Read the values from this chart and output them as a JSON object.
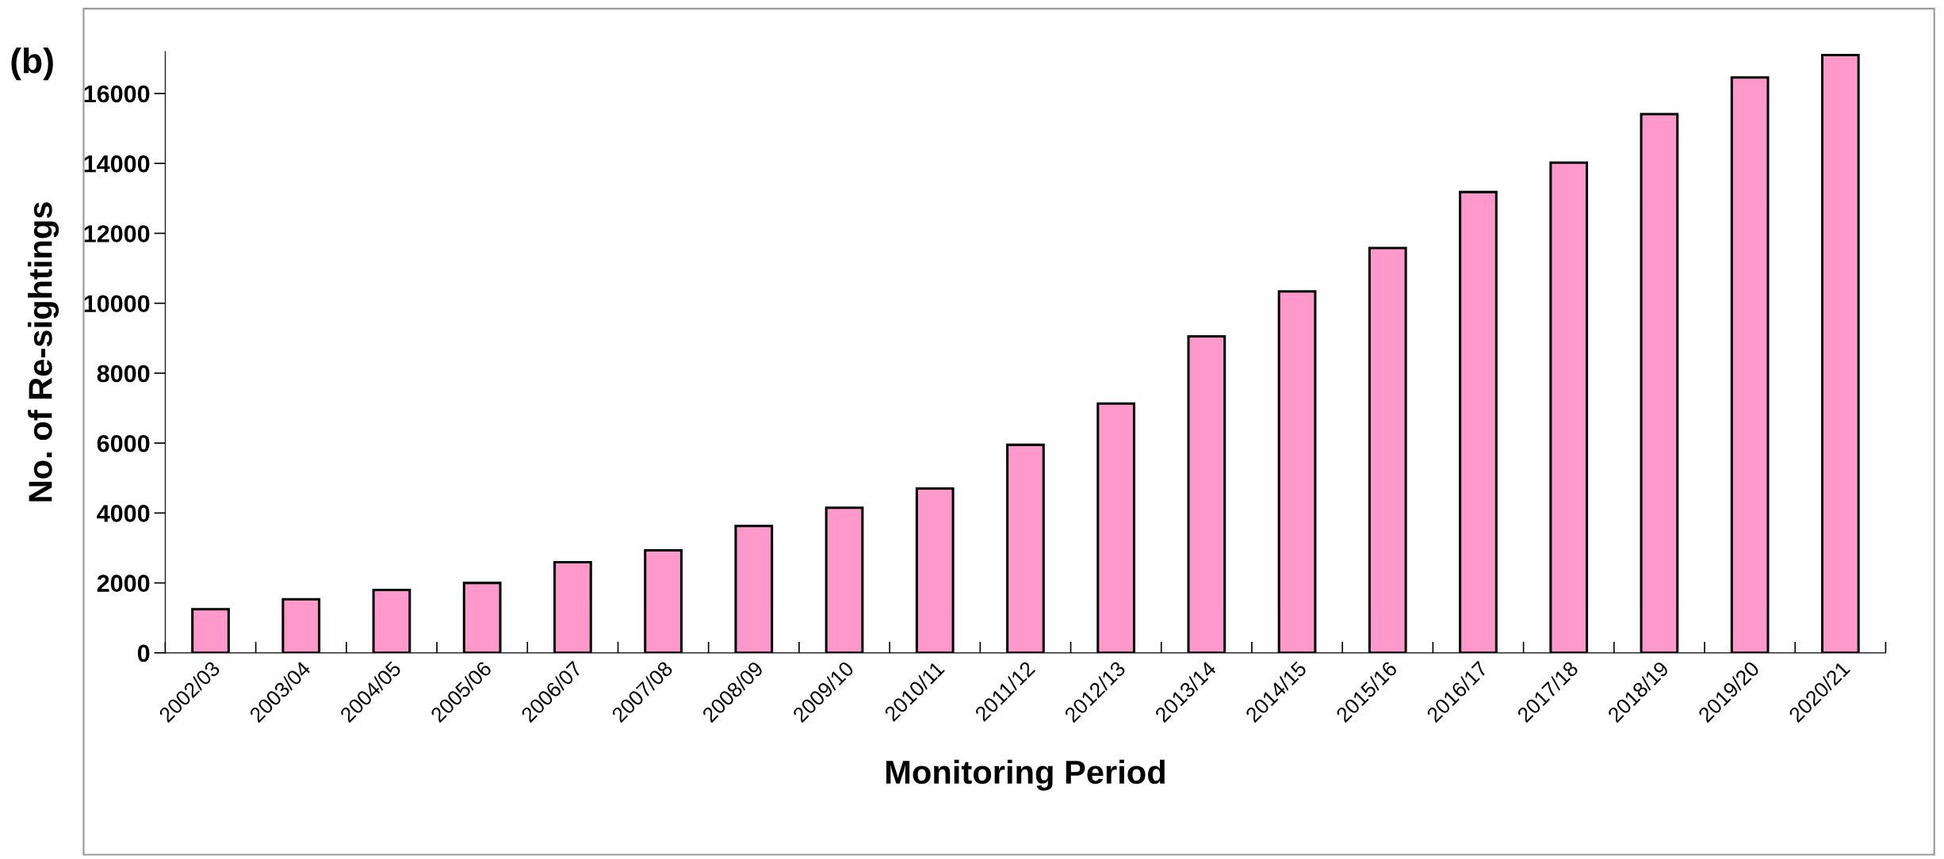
{
  "chart_data": {
    "type": "bar",
    "xlabel": "Monitoring Period",
    "ylabel": "No. of Re-sightings",
    "annotations": [
      "(b)"
    ],
    "categories": [
      "2002/03",
      "2003/04",
      "2004/05",
      "2005/06",
      "2006/07",
      "2007/08",
      "2008/09",
      "2009/10",
      "2010/11",
      "2011/12",
      "2012/13",
      "2013/14",
      "2014/15",
      "2015/16",
      "2016/17",
      "2017/18",
      "2018/19",
      "2019/20",
      "2020/21"
    ],
    "values": [
      1250,
      1530,
      1800,
      2000,
      2590,
      2930,
      3630,
      4150,
      4700,
      5950,
      7130,
      9050,
      10340,
      11580,
      13180,
      14020,
      15410,
      16460,
      17100
    ],
    "color": "#ff99cc",
    "ylim": [
      0,
      17200
    ],
    "yticks": [
      0,
      2000,
      4000,
      6000,
      8000,
      10000,
      12000,
      14000,
      16000
    ],
    "grid": false,
    "legend": false
  }
}
